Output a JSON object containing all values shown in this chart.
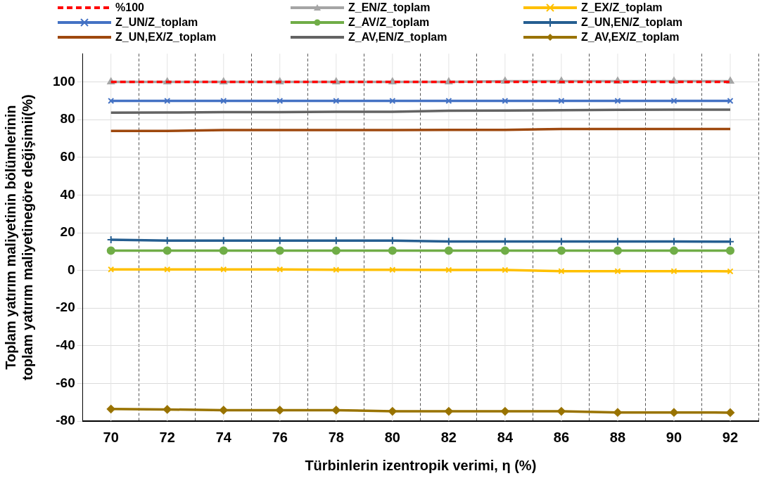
{
  "chart_data": {
    "type": "line",
    "xlabel": "Türbinlerin izentropik verimi, η (%)",
    "ylabel": "Toplam yatırım maliyetinin bölümlerinin\ntoplam yatırım maliyetinegöre değişimii(%)",
    "categories": [
      "70",
      "72",
      "74",
      "76",
      "78",
      "80",
      "82",
      "84",
      "86",
      "88",
      "90",
      "92"
    ],
    "ylim": [
      -80,
      115
    ],
    "yticks": [
      -80,
      -60,
      -40,
      -20,
      0,
      20,
      40,
      60,
      80,
      100
    ],
    "grid": true,
    "legend": "top",
    "series": [
      {
        "name": "%100",
        "color": "#ff0000",
        "line_style": "dashed",
        "marker": "none",
        "values": [
          100,
          100,
          100,
          100,
          100,
          100,
          100,
          100,
          100,
          100,
          100,
          100
        ]
      },
      {
        "name": "Z_EN/Z_toplam",
        "color": "#a5a5a5",
        "marker": "triangle",
        "values": [
          100,
          100,
          100,
          100,
          100,
          100,
          100,
          100.4,
          100.4,
          100.4,
          100.4,
          100.4
        ]
      },
      {
        "name": "Z_EX/Z_toplam",
        "color": "#ffc000",
        "marker": "cross",
        "values": [
          0.5,
          0.5,
          0.5,
          0.5,
          0.3,
          0.3,
          0.2,
          0.2,
          -0.4,
          -0.4,
          -0.4,
          -0.5
        ]
      },
      {
        "name": "Z_UN/Z_toplam",
        "color": "#4472c4",
        "marker": "cross",
        "values": [
          90,
          90,
          90,
          90,
          90,
          90,
          90,
          90,
          90,
          90,
          90,
          90
        ]
      },
      {
        "name": "Z_AV/Z_toplam",
        "color": "#70ad47",
        "marker": "circle",
        "values": [
          10.5,
          10.5,
          10.5,
          10.5,
          10.5,
          10.5,
          10.5,
          10.5,
          10.5,
          10.5,
          10.5,
          10.5
        ]
      },
      {
        "name": "Z_UN,EN/Z_toplam",
        "color": "#255e91",
        "marker": "plus",
        "values": [
          16.3,
          15.8,
          15.8,
          15.8,
          15.8,
          15.8,
          15.3,
          15.3,
          15.3,
          15.3,
          15.3,
          15.2
        ]
      },
      {
        "name": "Z_UN,EX/Z_toplam",
        "color": "#9e480e",
        "marker": "none",
        "values": [
          74,
          74,
          74.5,
          74.5,
          74.5,
          74.5,
          74.6,
          74.6,
          75,
          75,
          75,
          75
        ]
      },
      {
        "name": "Z_AV,EN/Z_toplam",
        "color": "#636363",
        "marker": "none",
        "values": [
          83.7,
          83.8,
          84,
          84,
          84.2,
          84.2,
          84.7,
          84.8,
          85,
          85.2,
          85.3,
          85.3
        ]
      },
      {
        "name": "Z_AV,EX/Z_toplam",
        "color": "#997300",
        "marker": "diamond",
        "values": [
          -73.6,
          -73.8,
          -74.2,
          -74.2,
          -74.2,
          -74.8,
          -74.8,
          -74.8,
          -74.8,
          -75.4,
          -75.4,
          -75.5
        ]
      }
    ]
  }
}
